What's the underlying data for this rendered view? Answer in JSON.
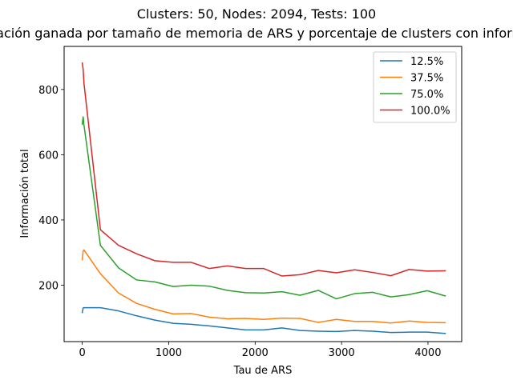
{
  "chart_data": {
    "type": "line",
    "title": "Clusters: 50, Nodes: 2094, Tests: 100",
    "subtitle": "Información ganada por tamaño de memoria de ARS y porcentaje de clusters con información",
    "xlabel": "Tau de ARS",
    "ylabel": "Información total",
    "xlim": [
      -210,
      4390
    ],
    "ylim": [
      27,
      932
    ],
    "xticks": [
      0,
      1000,
      2000,
      3000,
      4000
    ],
    "yticks": [
      200,
      400,
      600,
      800
    ],
    "grid": false,
    "legend_position": "top-right",
    "x": [
      0,
      10,
      20,
      210,
      420,
      630,
      840,
      1050,
      1260,
      1470,
      1680,
      1890,
      2100,
      2310,
      2520,
      2730,
      2940,
      3150,
      3360,
      3570,
      3780,
      3990,
      4200
    ],
    "series": [
      {
        "name": "12.5%",
        "color": "#1f77b4",
        "values": [
          116,
          130,
          131,
          131,
          121,
          106,
          93,
          83,
          80,
          75,
          69,
          63,
          63,
          69,
          61,
          59,
          58,
          61,
          59,
          55,
          56,
          56,
          52
        ]
      },
      {
        "name": "37.5%",
        "color": "#ff7f0e",
        "values": [
          278,
          305,
          308,
          235,
          176,
          144,
          126,
          112,
          113,
          102,
          97,
          98,
          95,
          99,
          98,
          86,
          95,
          89,
          89,
          84,
          90,
          86,
          85
        ]
      },
      {
        "name": "75.0%",
        "color": "#2ca02c",
        "values": [
          693,
          716,
          690,
          322,
          253,
          216,
          210,
          196,
          200,
          197,
          184,
          177,
          176,
          180,
          169,
          184,
          158,
          174,
          178,
          164,
          171,
          183,
          167
        ]
      },
      {
        "name": "100.0%",
        "color": "#d62728",
        "values": [
          881,
          862,
          818,
          370,
          322,
          296,
          275,
          270,
          270,
          251,
          259,
          251,
          251,
          228,
          232,
          245,
          238,
          247,
          239,
          229,
          248,
          243,
          244
        ]
      }
    ]
  }
}
